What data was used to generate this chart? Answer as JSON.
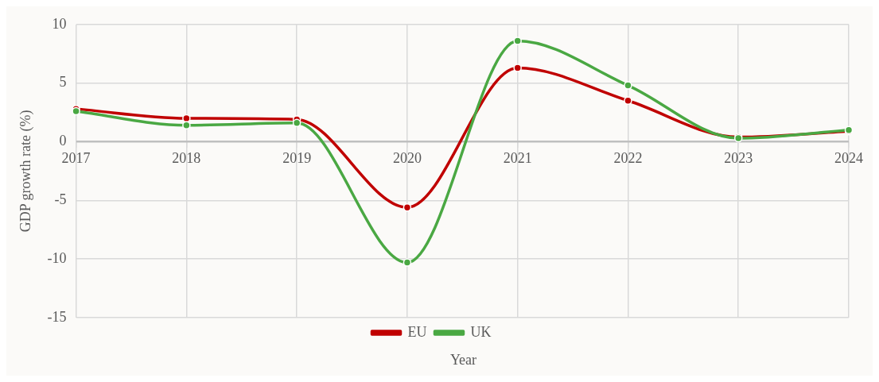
{
  "chart_data": {
    "type": "line",
    "xlabel": "Year",
    "ylabel": "GDP growth rate (%)",
    "categories": [
      "2017",
      "2018",
      "2019",
      "2020",
      "2021",
      "2022",
      "2023",
      "2024"
    ],
    "series": [
      {
        "name": "EU",
        "color": "#c00000",
        "values": [
          2.8,
          2.0,
          1.9,
          -5.6,
          6.3,
          3.5,
          0.4,
          0.9
        ]
      },
      {
        "name": "UK",
        "color": "#4aa843",
        "values": [
          2.6,
          1.4,
          1.6,
          -10.3,
          8.6,
          4.8,
          0.3,
          1.0
        ]
      }
    ],
    "ylim": [
      -15,
      10
    ],
    "yticks": [
      -15,
      -10,
      -5,
      0,
      5,
      10
    ],
    "grid": true,
    "legend": "bottom",
    "marker": "circle",
    "line_style": "solid"
  }
}
